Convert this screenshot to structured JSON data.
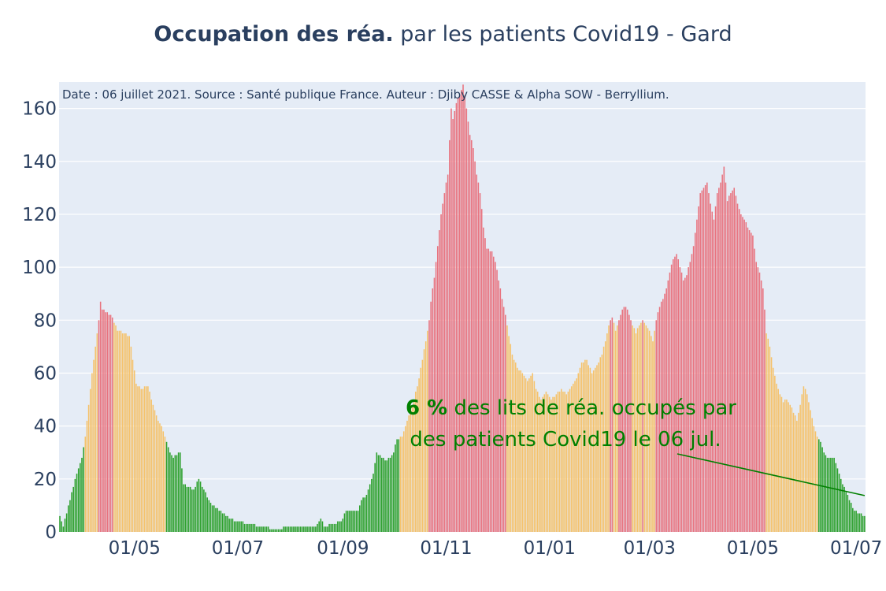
{
  "chart_data": {
    "type": "bar",
    "title_bold": "Occupation des réa.",
    "title_rest": " par les patients Covid19 - Gard",
    "source_note": "Date : 06 juillet 2021. Source : Santé publique France. Auteur : Djiby CASSE & Alpha SOW - Berryllium.",
    "xlabel": "",
    "ylabel": "",
    "ylim": [
      0,
      170
    ],
    "yticks": [
      0,
      20,
      40,
      60,
      80,
      100,
      120,
      140,
      160
    ],
    "xtick_labels": [
      "01/05",
      "01/07",
      "01/09",
      "01/11",
      "01/01",
      "01/03",
      "01/05",
      "01/07"
    ],
    "x_range": [
      "2020-03-18",
      "2021-07-06"
    ],
    "xtick_dates": [
      "2020-05-01",
      "2020-07-01",
      "2020-09-01",
      "2020-11-01",
      "2021-01-01",
      "2021-03-01",
      "2021-05-01",
      "2021-07-01"
    ],
    "grid": true,
    "colors": {
      "green": "#2ca02c",
      "orange": "#f5c26b",
      "red": "#e8737f",
      "plot_bg": "#e5ecf6",
      "annotation": "#008000",
      "axis_text": "#2a3f5f"
    },
    "color_thresholds": {
      "orange_from": 36,
      "red_from": 80
    },
    "segments": [
      [
        "2020-03-18",
        6
      ],
      [
        "2020-03-20",
        2
      ],
      [
        "2020-03-24",
        12
      ],
      [
        "2020-03-26",
        17
      ],
      [
        "2020-03-28",
        22
      ],
      [
        "2020-03-31",
        28
      ],
      [
        "2020-04-02",
        36
      ],
      [
        "2020-04-04",
        48
      ],
      [
        "2020-04-06",
        60
      ],
      [
        "2020-04-08",
        70
      ],
      [
        "2020-04-10",
        80
      ],
      [
        "2020-04-11",
        87
      ],
      [
        "2020-04-12",
        84
      ],
      [
        "2020-04-15",
        83
      ],
      [
        "2020-04-18",
        81
      ],
      [
        "2020-04-21",
        76
      ],
      [
        "2020-04-25",
        75
      ],
      [
        "2020-04-28",
        74
      ],
      [
        "2020-04-30",
        65
      ],
      [
        "2020-05-02",
        56
      ],
      [
        "2020-05-05",
        54
      ],
      [
        "2020-05-09",
        55
      ],
      [
        "2020-05-12",
        48
      ],
      [
        "2020-05-15",
        42
      ],
      [
        "2020-05-17",
        40
      ],
      [
        "2020-05-22",
        30
      ],
      [
        "2020-05-24",
        28
      ],
      [
        "2020-05-28",
        30
      ],
      [
        "2020-05-30",
        18
      ],
      [
        "2020-06-05",
        16
      ],
      [
        "2020-06-08",
        20
      ],
      [
        "2020-06-14",
        12
      ],
      [
        "2020-06-16",
        10
      ],
      [
        "2020-06-22",
        7
      ],
      [
        "2020-06-26",
        5
      ],
      [
        "2020-07-01",
        4
      ],
      [
        "2020-07-08",
        3
      ],
      [
        "2020-07-14",
        2
      ],
      [
        "2020-07-24",
        1
      ],
      [
        "2020-08-01",
        2
      ],
      [
        "2020-08-16",
        2
      ],
      [
        "2020-08-19",
        5
      ],
      [
        "2020-08-21",
        2
      ],
      [
        "2020-08-31",
        4
      ],
      [
        "2020-09-03",
        8
      ],
      [
        "2020-09-10",
        8
      ],
      [
        "2020-09-12",
        12
      ],
      [
        "2020-09-15",
        14
      ],
      [
        "2020-09-19",
        22
      ],
      [
        "2020-09-21",
        30
      ],
      [
        "2020-09-26",
        27
      ],
      [
        "2020-09-29",
        28
      ],
      [
        "2020-10-01",
        30
      ],
      [
        "2020-10-03",
        35
      ],
      [
        "2020-10-06",
        36
      ],
      [
        "2020-10-09",
        42
      ],
      [
        "2020-10-12",
        48
      ],
      [
        "2020-10-15",
        55
      ],
      [
        "2020-10-18",
        65
      ],
      [
        "2020-10-20",
        72
      ],
      [
        "2020-10-22",
        80
      ],
      [
        "2020-10-23",
        87
      ],
      [
        "2020-10-25",
        96
      ],
      [
        "2020-10-27",
        108
      ],
      [
        "2020-10-29",
        120
      ],
      [
        "2020-10-31",
        128
      ],
      [
        "2020-11-02",
        135
      ],
      [
        "2020-11-03",
        148
      ],
      [
        "2020-11-04",
        160
      ],
      [
        "2020-11-05",
        156
      ],
      [
        "2020-11-07",
        162
      ],
      [
        "2020-11-09",
        165
      ],
      [
        "2020-11-11",
        169
      ],
      [
        "2020-11-13",
        160
      ],
      [
        "2020-11-15",
        150
      ],
      [
        "2020-11-17",
        145
      ],
      [
        "2020-11-19",
        135
      ],
      [
        "2020-11-21",
        128
      ],
      [
        "2020-11-23",
        115
      ],
      [
        "2020-11-25",
        107
      ],
      [
        "2020-11-28",
        106
      ],
      [
        "2020-11-30",
        102
      ],
      [
        "2020-12-02",
        95
      ],
      [
        "2020-12-04",
        88
      ],
      [
        "2020-12-06",
        82
      ],
      [
        "2020-12-08",
        74
      ],
      [
        "2020-12-10",
        67
      ],
      [
        "2020-12-13",
        62
      ],
      [
        "2020-12-16",
        60
      ],
      [
        "2020-12-19",
        57
      ],
      [
        "2020-12-22",
        60
      ],
      [
        "2020-12-24",
        54
      ],
      [
        "2020-12-27",
        50
      ],
      [
        "2020-12-30",
        53
      ],
      [
        "2021-01-02",
        50
      ],
      [
        "2021-01-05",
        52
      ],
      [
        "2021-01-08",
        54
      ],
      [
        "2021-01-11",
        52
      ],
      [
        "2021-01-14",
        55
      ],
      [
        "2021-01-17",
        58
      ],
      [
        "2021-01-20",
        64
      ],
      [
        "2021-01-23",
        65
      ],
      [
        "2021-01-26",
        60
      ],
      [
        "2021-01-29",
        63
      ],
      [
        "2021-02-01",
        67
      ],
      [
        "2021-02-03",
        72
      ],
      [
        "2021-02-05",
        78
      ],
      [
        "2021-02-07",
        81
      ],
      [
        "2021-02-09",
        76
      ],
      [
        "2021-02-11",
        80
      ],
      [
        "2021-02-13",
        84
      ],
      [
        "2021-02-15",
        85
      ],
      [
        "2021-02-17",
        82
      ],
      [
        "2021-02-19",
        78
      ],
      [
        "2021-02-21",
        75
      ],
      [
        "2021-02-23",
        78
      ],
      [
        "2021-02-25",
        80
      ],
      [
        "2021-02-27",
        78
      ],
      [
        "2021-03-01",
        76
      ],
      [
        "2021-03-03",
        72
      ],
      [
        "2021-03-05",
        80
      ],
      [
        "2021-03-07",
        85
      ],
      [
        "2021-03-09",
        88
      ],
      [
        "2021-03-11",
        92
      ],
      [
        "2021-03-13",
        98
      ],
      [
        "2021-03-15",
        103
      ],
      [
        "2021-03-17",
        105
      ],
      [
        "2021-03-19",
        100
      ],
      [
        "2021-03-21",
        95
      ],
      [
        "2021-03-23",
        97
      ],
      [
        "2021-03-25",
        102
      ],
      [
        "2021-03-27",
        108
      ],
      [
        "2021-03-29",
        118
      ],
      [
        "2021-03-31",
        128
      ],
      [
        "2021-04-02",
        130
      ],
      [
        "2021-04-04",
        132
      ],
      [
        "2021-04-06",
        124
      ],
      [
        "2021-04-08",
        118
      ],
      [
        "2021-04-10",
        128
      ],
      [
        "2021-04-12",
        132
      ],
      [
        "2021-04-14",
        138
      ],
      [
        "2021-04-16",
        125
      ],
      [
        "2021-04-18",
        128
      ],
      [
        "2021-04-20",
        130
      ],
      [
        "2021-04-22",
        124
      ],
      [
        "2021-04-24",
        120
      ],
      [
        "2021-04-26",
        118
      ],
      [
        "2021-04-28",
        115
      ],
      [
        "2021-05-01",
        112
      ],
      [
        "2021-05-03",
        102
      ],
      [
        "2021-05-05",
        98
      ],
      [
        "2021-05-07",
        92
      ],
      [
        "2021-05-09",
        75
      ],
      [
        "2021-05-11",
        70
      ],
      [
        "2021-05-13",
        62
      ],
      [
        "2021-05-15",
        56
      ],
      [
        "2021-05-17",
        52
      ],
      [
        "2021-05-19",
        49
      ],
      [
        "2021-05-21",
        50
      ],
      [
        "2021-05-23",
        48
      ],
      [
        "2021-05-25",
        45
      ],
      [
        "2021-05-27",
        42
      ],
      [
        "2021-05-29",
        48
      ],
      [
        "2021-05-31",
        55
      ],
      [
        "2021-06-02",
        52
      ],
      [
        "2021-06-04",
        46
      ],
      [
        "2021-06-06",
        40
      ],
      [
        "2021-06-08",
        36
      ],
      [
        "2021-06-10",
        34
      ],
      [
        "2021-06-12",
        30
      ],
      [
        "2021-06-14",
        28
      ],
      [
        "2021-06-18",
        28
      ],
      [
        "2021-06-21",
        22
      ],
      [
        "2021-06-23",
        18
      ],
      [
        "2021-06-25",
        15
      ],
      [
        "2021-06-27",
        12
      ],
      [
        "2021-06-30",
        8
      ],
      [
        "2021-07-06",
        6
      ]
    ],
    "annotation": {
      "value": "6",
      "percent_sign": "%",
      "line1_rest": " des lits de réa. occupés par",
      "line2": "des patients Covid19 le 06 jul."
    }
  }
}
